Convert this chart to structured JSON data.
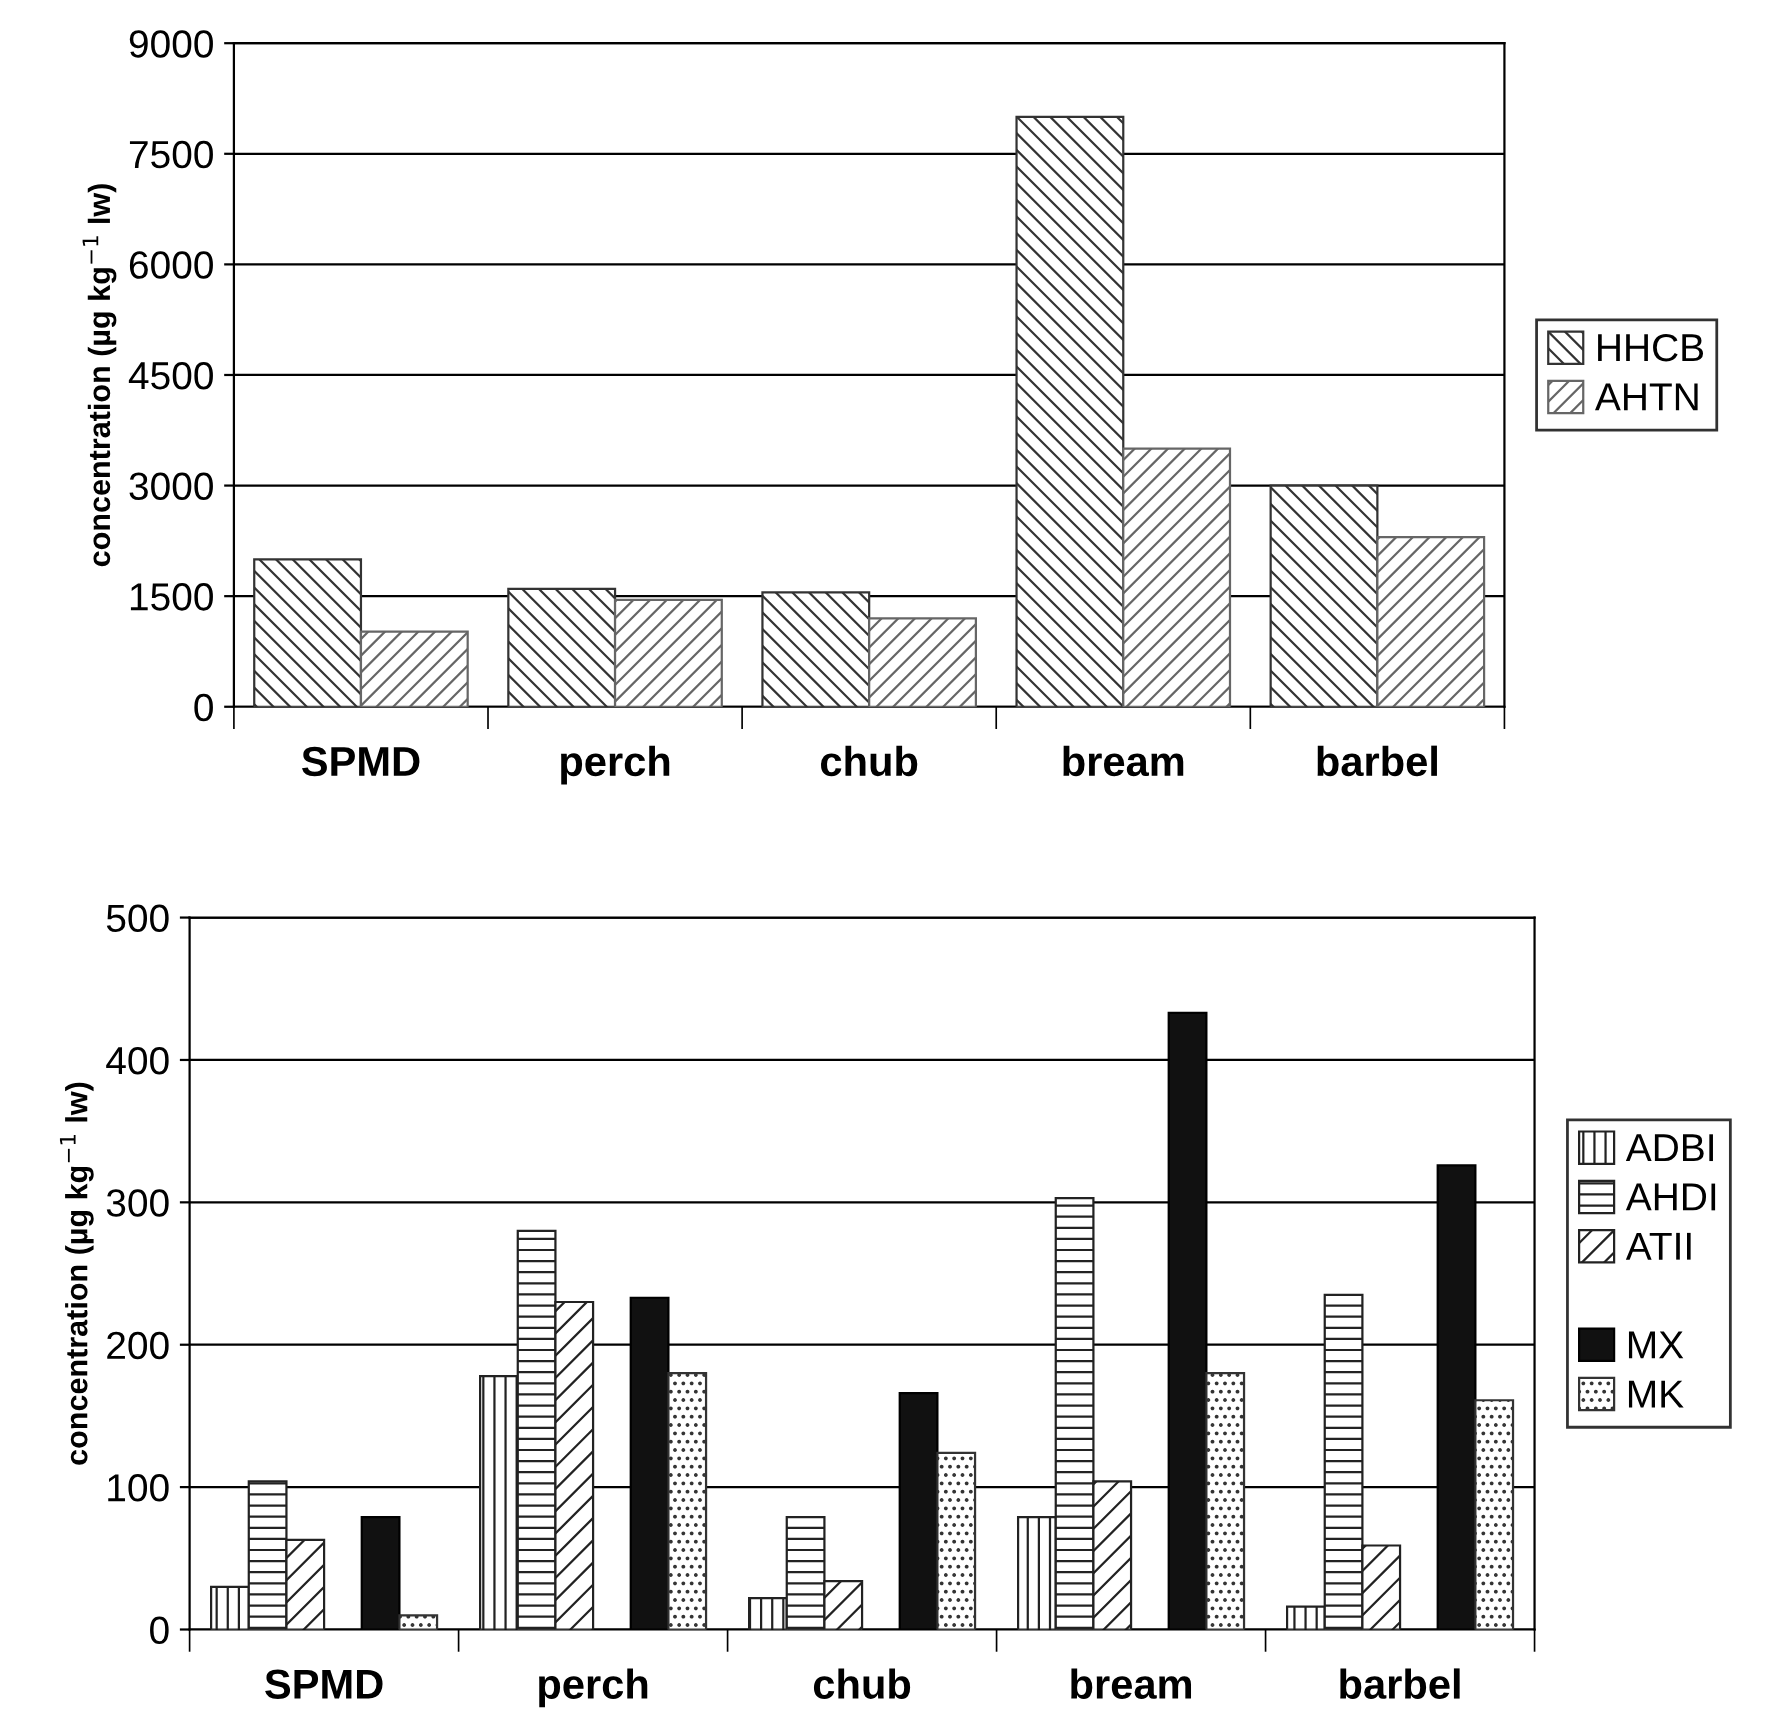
{
  "chart_data": [
    {
      "type": "bar",
      "categories": [
        "SPMD",
        "perch",
        "chub",
        "bream",
        "barbel"
      ],
      "ylabel": "concentration (µg kg$^{−1}$ lw)",
      "ylim": [
        0,
        9000
      ],
      "yticks": [
        0,
        1500,
        3000,
        4500,
        6000,
        7500,
        9000
      ],
      "grid": "y",
      "legend": "right",
      "series": [
        {
          "name": "HHCB",
          "color": "#333333",
          "values": [
            2000,
            1600,
            1550,
            8000,
            3000
          ]
        },
        {
          "name": "AHTN",
          "color": "#666666",
          "values": [
            1020,
            1450,
            1200,
            3500,
            2300
          ]
        }
      ]
    },
    {
      "type": "bar",
      "categories": [
        "SPMD",
        "perch",
        "chub",
        "bream",
        "barbel"
      ],
      "ylabel": "concentration (µg kg$^{−1}$ lw)",
      "ylim": [
        0,
        500
      ],
      "yticks": [
        0,
        100,
        200,
        300,
        400,
        500
      ],
      "grid": "y",
      "legend": "right",
      "series": [
        {
          "name": "ADBI",
          "color": "#222222",
          "values": [
            30,
            178,
            22,
            79,
            16
          ]
        },
        {
          "name": "AHDI",
          "color": "#222222",
          "values": [
            104,
            280,
            79,
            303,
            235
          ]
        },
        {
          "name": "ATII",
          "color": "#222222",
          "values": [
            63,
            230,
            34,
            104,
            59
          ]
        },
        {
          "values": [
            null,
            null,
            null,
            null,
            null
          ]
        },
        {
          "name": "MX",
          "color": "#111111",
          "values": [
            79,
            233,
            166,
            433,
            326
          ]
        },
        {
          "name": "MK",
          "color": "#333333",
          "values": [
            10,
            180,
            124,
            180,
            161
          ]
        }
      ]
    }
  ]
}
